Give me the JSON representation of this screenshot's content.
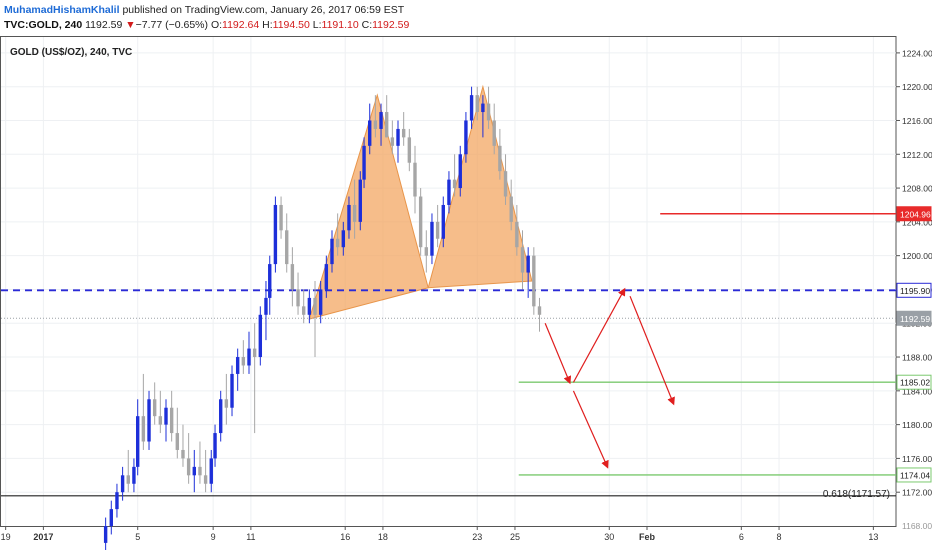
{
  "header": {
    "author": "MuhamadHishamKhalil",
    "published": " published on TradingView.com, January 26, 2017 06:59 EST",
    "symbol": "TVC:GOLD, 240",
    "last": "1192.59",
    "change_arrow": "▼",
    "change": "−7.77 (−0.65%)",
    "o_label": "O:",
    "o_value": "1192.64",
    "h_label": "H:",
    "h_value": "1194.50",
    "l_label": "L:",
    "l_value": "1191.10",
    "c_label": "C:",
    "c_value": "1192.59"
  },
  "chart_data": {
    "type": "candlestick",
    "title": "GOLD (US$/OZ), 240, TVC",
    "y_range": [
      1168,
      1226
    ],
    "y_ticks": [
      1172,
      1176,
      1180,
      1184,
      1188,
      1192,
      1196,
      1200,
      1204,
      1208,
      1212,
      1216,
      1220,
      1224
    ],
    "y_tick_labels": [
      "1172.00",
      "1176.00",
      "1180.00",
      "1184.00",
      "1188.00",
      "1192.00",
      "1196.00",
      "1200.00",
      "1204.00",
      "1208.00",
      "1212.00",
      "1216.00",
      "1220.00",
      "1224.00"
    ],
    "bottom_partial_label": "1168.00",
    "x_tick_labels": [
      "19",
      "2017",
      "5",
      "9",
      "11",
      "16",
      "18",
      "23",
      "25",
      "30",
      "Feb",
      "6",
      "8",
      "13"
    ],
    "x_tick_days": [
      -2,
      0,
      5,
      9,
      11,
      16,
      18,
      23,
      25,
      30,
      32,
      37,
      39,
      44
    ],
    "candles": [
      [
        3.3,
        1166,
        1169,
        1163,
        1168
      ],
      [
        3.6,
        1168,
        1171,
        1167,
        1170
      ],
      [
        3.9,
        1170,
        1173,
        1169,
        1172
      ],
      [
        4.2,
        1172,
        1175,
        1171,
        1174
      ],
      [
        4.5,
        1174,
        1177,
        1172,
        1173
      ],
      [
        4.8,
        1173,
        1176,
        1172,
        1175
      ],
      [
        5.0,
        1175,
        1183,
        1174,
        1181
      ],
      [
        5.3,
        1181,
        1186,
        1177,
        1178
      ],
      [
        5.6,
        1178,
        1184,
        1177,
        1183
      ],
      [
        5.9,
        1183,
        1185,
        1180,
        1181
      ],
      [
        6.2,
        1181,
        1184,
        1179,
        1180
      ],
      [
        6.5,
        1180,
        1183,
        1178,
        1182
      ],
      [
        6.8,
        1182,
        1184,
        1178,
        1179
      ],
      [
        7.1,
        1179,
        1182,
        1176,
        1177
      ],
      [
        7.4,
        1177,
        1180,
        1175,
        1176
      ],
      [
        7.7,
        1176,
        1179,
        1173,
        1174
      ],
      [
        8.0,
        1174,
        1177,
        1172,
        1175
      ],
      [
        8.3,
        1175,
        1178,
        1173,
        1174
      ],
      [
        8.6,
        1174,
        1177,
        1172,
        1173
      ],
      [
        8.9,
        1173,
        1177,
        1172,
        1176
      ],
      [
        9.1,
        1176,
        1180,
        1175,
        1179
      ],
      [
        9.4,
        1179,
        1184,
        1178,
        1183
      ],
      [
        9.7,
        1183,
        1186,
        1180,
        1182
      ],
      [
        10.0,
        1182,
        1187,
        1181,
        1186
      ],
      [
        10.3,
        1186,
        1189,
        1184,
        1188
      ],
      [
        10.6,
        1188,
        1190,
        1186,
        1187
      ],
      [
        10.9,
        1187,
        1191,
        1186,
        1189
      ],
      [
        11.2,
        1189,
        1192,
        1179,
        1188
      ],
      [
        11.5,
        1188,
        1194,
        1187,
        1193
      ],
      [
        11.8,
        1193,
        1197,
        1190,
        1195
      ],
      [
        12.0,
        1195,
        1200,
        1193,
        1199
      ],
      [
        12.3,
        1199,
        1207,
        1198,
        1206
      ],
      [
        12.6,
        1206,
        1207,
        1202,
        1203
      ],
      [
        12.9,
        1203,
        1205,
        1198,
        1199
      ],
      [
        13.2,
        1199,
        1201,
        1194,
        1196
      ],
      [
        13.5,
        1196,
        1198,
        1193,
        1194
      ],
      [
        13.8,
        1194,
        1196,
        1192,
        1193
      ],
      [
        14.1,
        1193,
        1196,
        1192,
        1195
      ],
      [
        14.4,
        1195,
        1197,
        1188,
        1193
      ],
      [
        14.7,
        1193,
        1197,
        1192,
        1196
      ],
      [
        15.0,
        1196,
        1200,
        1195,
        1199
      ],
      [
        15.3,
        1199,
        1203,
        1198,
        1202
      ],
      [
        15.6,
        1202,
        1205,
        1200,
        1201
      ],
      [
        15.9,
        1201,
        1204,
        1200,
        1203
      ],
      [
        16.2,
        1203,
        1207,
        1202,
        1206
      ],
      [
        16.5,
        1206,
        1209,
        1202,
        1204
      ],
      [
        16.8,
        1204,
        1210,
        1203,
        1209
      ],
      [
        17.0,
        1209,
        1214,
        1208,
        1213
      ],
      [
        17.3,
        1213,
        1218,
        1212,
        1216
      ],
      [
        17.6,
        1216,
        1219,
        1214,
        1215
      ],
      [
        17.9,
        1215,
        1218,
        1213,
        1217
      ],
      [
        18.2,
        1217,
        1219,
        1214,
        1214
      ],
      [
        18.5,
        1214,
        1216,
        1212,
        1213
      ],
      [
        18.8,
        1213,
        1216,
        1211,
        1215
      ],
      [
        19.1,
        1215,
        1217,
        1213,
        1214
      ],
      [
        19.4,
        1214,
        1215,
        1210,
        1211
      ],
      [
        19.7,
        1211,
        1213,
        1205,
        1207
      ],
      [
        20.0,
        1207,
        1208,
        1200,
        1201
      ],
      [
        20.3,
        1201,
        1203,
        1198,
        1200
      ],
      [
        20.6,
        1200,
        1205,
        1199,
        1204
      ],
      [
        20.9,
        1204,
        1206,
        1201,
        1202
      ],
      [
        21.2,
        1202,
        1207,
        1201,
        1206
      ],
      [
        21.5,
        1206,
        1210,
        1205,
        1209
      ],
      [
        21.8,
        1209,
        1212,
        1207,
        1208
      ],
      [
        22.1,
        1208,
        1213,
        1207,
        1212
      ],
      [
        22.4,
        1212,
        1217,
        1211,
        1216
      ],
      [
        22.7,
        1216,
        1220,
        1215,
        1219
      ],
      [
        23.0,
        1219,
        1220,
        1216,
        1217
      ],
      [
        23.3,
        1217,
        1219,
        1214,
        1218
      ],
      [
        23.6,
        1218,
        1220,
        1215,
        1216
      ],
      [
        23.9,
        1216,
        1218,
        1212,
        1213
      ],
      [
        24.2,
        1213,
        1215,
        1209,
        1210
      ],
      [
        24.5,
        1210,
        1212,
        1206,
        1207
      ],
      [
        24.8,
        1207,
        1209,
        1203,
        1204
      ],
      [
        25.1,
        1204,
        1206,
        1200,
        1201
      ],
      [
        25.4,
        1201,
        1203,
        1196,
        1198
      ],
      [
        25.7,
        1198,
        1201,
        1195,
        1200
      ],
      [
        26.0,
        1200,
        1201,
        1193,
        1194
      ],
      [
        26.3,
        1194,
        1195,
        1191,
        1193
      ]
    ],
    "horizontal_lines": [
      {
        "price": 1195.9,
        "label": "1195.90",
        "style": "dashed",
        "color": "#2a2ad6"
      },
      {
        "price": 1204.96,
        "label": "1204.96",
        "style": "solid",
        "color": "#e82a2a"
      },
      {
        "price": 1185.02,
        "label": "1185.02",
        "style": "solid",
        "color": "#7bc96f"
      },
      {
        "price": 1174.04,
        "label": "1174.04",
        "style": "solid",
        "color": "#7bc96f"
      },
      {
        "price": 1192.59,
        "label": "1192.59",
        "style": "dotted",
        "color": "#9aa0a6"
      },
      {
        "price": 1171.57,
        "label": "1171.57",
        "style": "solid",
        "color": "#222222"
      }
    ],
    "fib_label": "0.618(1171.57)",
    "pattern_triangles": [
      [
        [
          14.1,
          1192.5
        ],
        [
          17.7,
          1219
        ],
        [
          20.4,
          1196.2
        ]
      ],
      [
        [
          20.4,
          1196.2
        ],
        [
          23.3,
          1220
        ],
        [
          25.9,
          1197
        ]
      ]
    ],
    "arrows": [
      [
        [
          26.6,
          1192
        ],
        [
          27.9,
          1185
        ]
      ],
      [
        [
          28.1,
          1185
        ],
        [
          30.8,
          1196
        ]
      ],
      [
        [
          31.1,
          1195.2
        ],
        [
          33.4,
          1182.5
        ]
      ],
      [
        [
          28.1,
          1184
        ],
        [
          29.9,
          1175
        ]
      ]
    ],
    "colors": {
      "up_candle": "#1d2fd9",
      "down_candle": "#a6a6a6",
      "pattern_fill": "#f2a35d",
      "arrow": "#e01e1e",
      "grid": "#eef0f3"
    }
  }
}
